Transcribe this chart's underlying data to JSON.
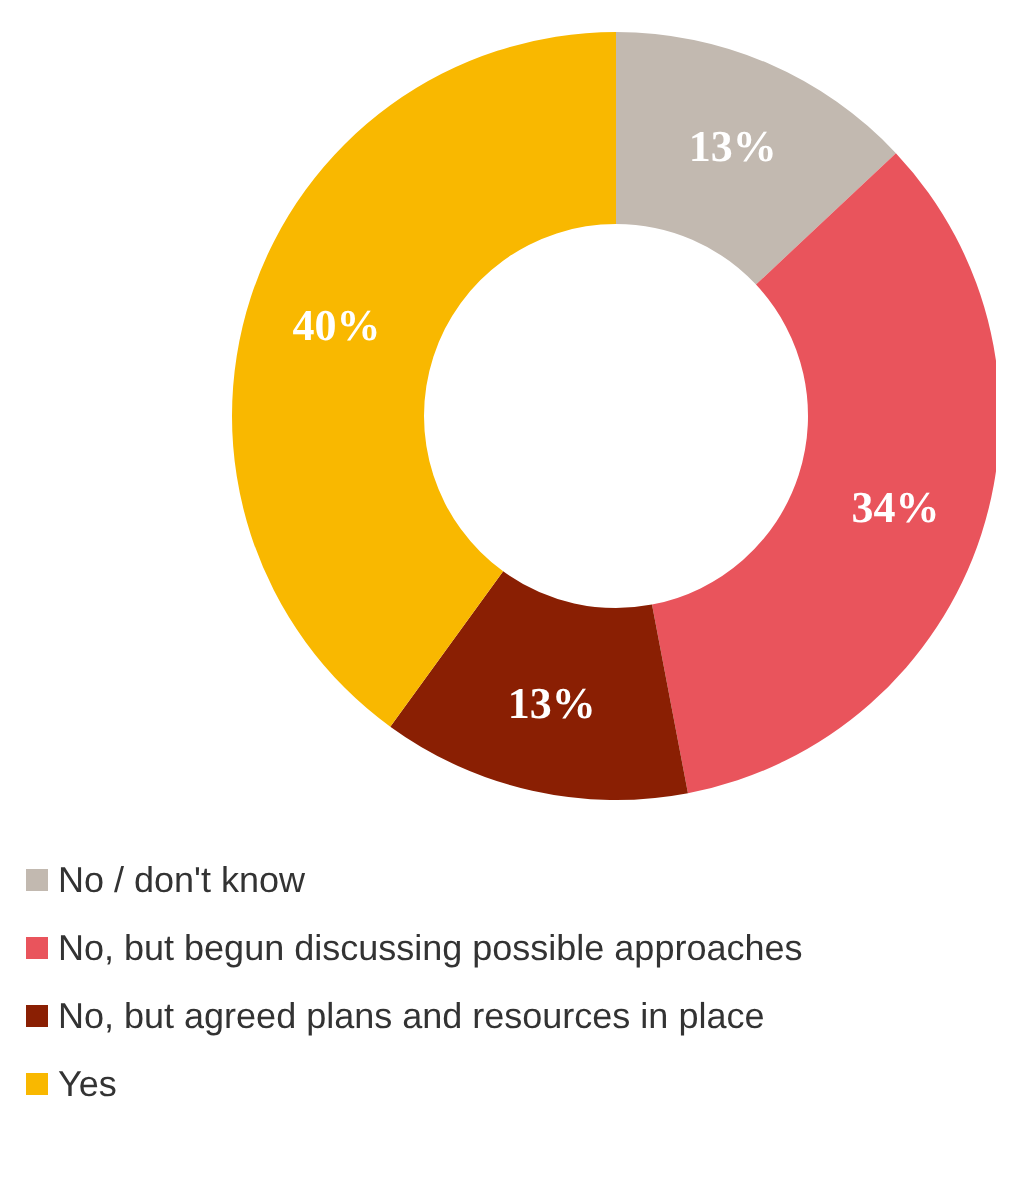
{
  "chart_data": {
    "type": "donut",
    "categories": [
      "No / don't know",
      "No, but begun discussing possible approaches",
      "No, but agreed plans and resources in place",
      "Yes"
    ],
    "values": [
      13,
      34,
      13,
      40
    ],
    "colors": [
      "#c2b9b0",
      "#e9545c",
      "#8a1f03",
      "#f9b800"
    ],
    "value_labels": [
      "13%",
      "34%",
      "13%",
      "40%"
    ],
    "legend": "bottom left"
  }
}
